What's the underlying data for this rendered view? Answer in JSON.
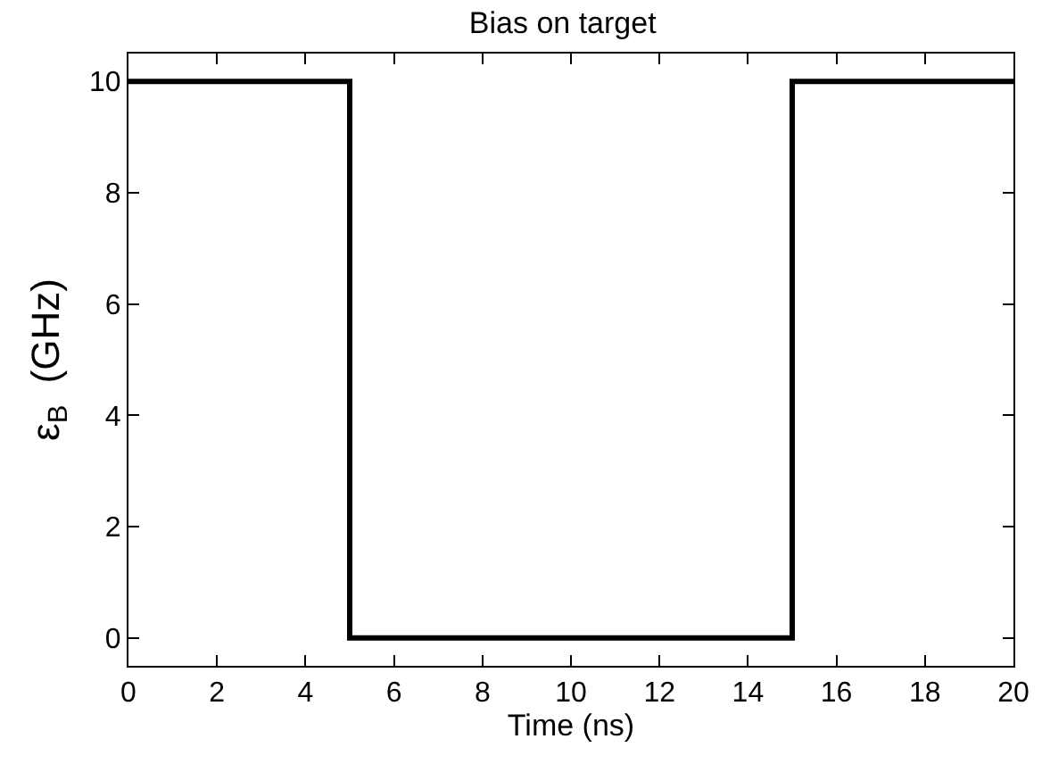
{
  "chart_data": {
    "type": "line",
    "title": "Bias on target",
    "xlabel": "Time (ns)",
    "ylabel": "ε$_{B}$  (GHz)",
    "x": [
      0,
      5,
      5,
      15,
      15,
      20
    ],
    "series": [
      {
        "color": "#000000",
        "values": [
          10,
          10,
          0,
          0,
          10,
          10
        ]
      }
    ],
    "xlim": [
      0,
      20
    ],
    "xticks": [
      0,
      2,
      4,
      6,
      8,
      10,
      12,
      14,
      16,
      18,
      20
    ],
    "ylim": [
      -0.5,
      10.5
    ],
    "yticks": [
      0,
      2,
      4,
      6,
      8,
      10
    ],
    "grid": false,
    "marker": "none",
    "line_style": "solid"
  }
}
